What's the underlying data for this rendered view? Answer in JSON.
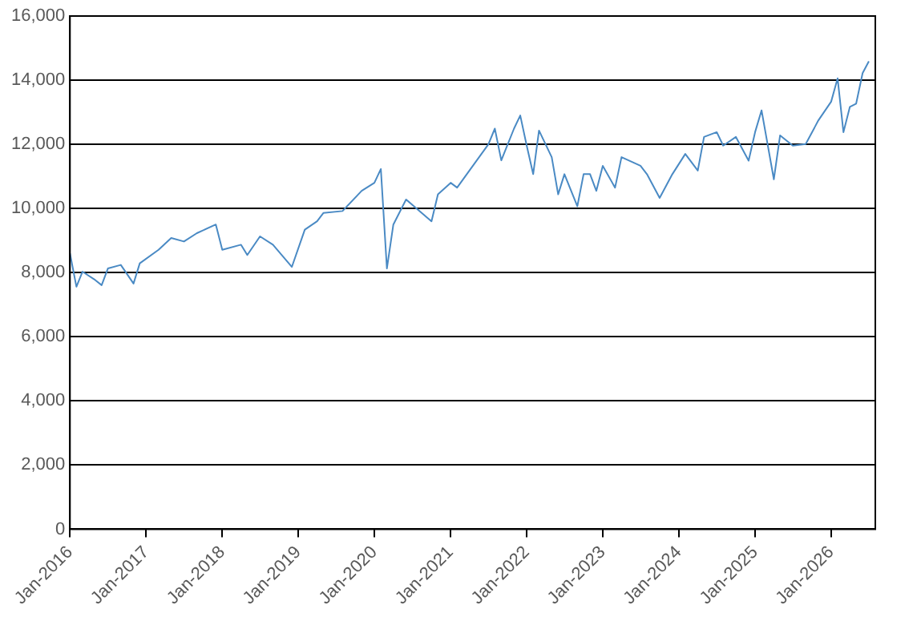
{
  "chart_data": {
    "type": "line",
    "x": [
      "2016-01",
      "2016-02",
      "2016-03",
      "2016-05",
      "2016-06",
      "2016-07",
      "2016-09",
      "2016-11",
      "2016-12",
      "2017-03",
      "2017-05",
      "2017-07",
      "2017-09",
      "2017-12",
      "2018-01",
      "2018-04",
      "2018-05",
      "2018-07",
      "2018-09",
      "2018-12",
      "2019-02",
      "2019-04",
      "2019-05",
      "2019-08",
      "2019-11",
      "2020-01",
      "2020-02",
      "2020-03",
      "2020-04",
      "2020-06",
      "2020-10",
      "2020-11",
      "2021-01",
      "2021-02",
      "2021-04",
      "2021-07",
      "2021-08",
      "2021-09",
      "2021-11",
      "2021-12",
      "2022-01",
      "2022-02",
      "2022-03",
      "2022-05",
      "2022-06",
      "2022-07",
      "2022-09",
      "2022-10",
      "2022-11",
      "2022-12",
      "2023-01",
      "2023-03",
      "2023-04",
      "2023-07",
      "2023-08",
      "2023-10",
      "2023-12",
      "2024-02",
      "2024-04",
      "2024-05",
      "2024-07",
      "2024-08",
      "2024-10",
      "2024-12",
      "2025-01",
      "2025-02",
      "2025-04",
      "2025-05",
      "2025-07",
      "2025-09",
      "2025-11",
      "2026-01",
      "2026-02",
      "2026-03",
      "2026-04",
      "2026-05",
      "2026-06",
      "2026-07"
    ],
    "series": [
      {
        "color": "#4a8ac4",
        "values": [
          8600,
          7560,
          8030,
          7770,
          7610,
          8130,
          8240,
          7660,
          8290,
          8710,
          9080,
          8970,
          9230,
          9500,
          8710,
          8870,
          8550,
          9130,
          8870,
          8180,
          9340,
          9600,
          9860,
          9920,
          10550,
          10800,
          11230,
          8130,
          9500,
          10280,
          9600,
          10440,
          10800,
          10650,
          11180,
          12000,
          12490,
          11500,
          12490,
          12900,
          11960,
          11070,
          12430,
          11600,
          10440,
          11070,
          10070,
          11070,
          11070,
          10550,
          11330,
          10650,
          11600,
          11330,
          11070,
          10330,
          11070,
          11700,
          11180,
          12230,
          12380,
          11960,
          12230,
          11490,
          12380,
          13060,
          10910,
          12280,
          11960,
          12010,
          12750,
          13330,
          14060,
          12380,
          13170,
          13270,
          14220,
          14590
        ]
      }
    ],
    "ylim": [
      0,
      16000
    ],
    "yticks": [
      0,
      {
        "value": 2000,
        "label": "2,000"
      },
      {
        "value": 4000,
        "label": "4,000"
      },
      {
        "value": 6000,
        "label": "6,000"
      },
      {
        "value": 8000,
        "label": "8,000"
      },
      {
        "value": 10000,
        "label": "10,000"
      },
      {
        "value": 12000,
        "label": "12,000"
      },
      {
        "value": 14000,
        "label": "14,000"
      },
      {
        "value": 16000,
        "label": "16,000"
      }
    ],
    "xlim": [
      "2016-01",
      "2026-08"
    ],
    "xticks": [
      {
        "value": "2016-01",
        "label": "Jan-2016"
      },
      {
        "value": "2017-01",
        "label": "Jan-2017"
      },
      {
        "value": "2018-01",
        "label": "Jan-2018"
      },
      {
        "value": "2019-01",
        "label": "Jan-2019"
      },
      {
        "value": "2020-01",
        "label": "Jan-2020"
      },
      {
        "value": "2021-01",
        "label": "Jan-2021"
      },
      {
        "value": "2022-01",
        "label": "Jan-2022"
      },
      {
        "value": "2023-01",
        "label": "Jan-2023"
      },
      {
        "value": "2024-01",
        "label": "Jan-2024"
      },
      {
        "value": "2025-01",
        "label": "Jan-2025"
      },
      {
        "value": "2026-01",
        "label": "Jan-2026"
      }
    ],
    "grid": "y",
    "legend": false,
    "marker": "none",
    "line_style": "solid"
  }
}
